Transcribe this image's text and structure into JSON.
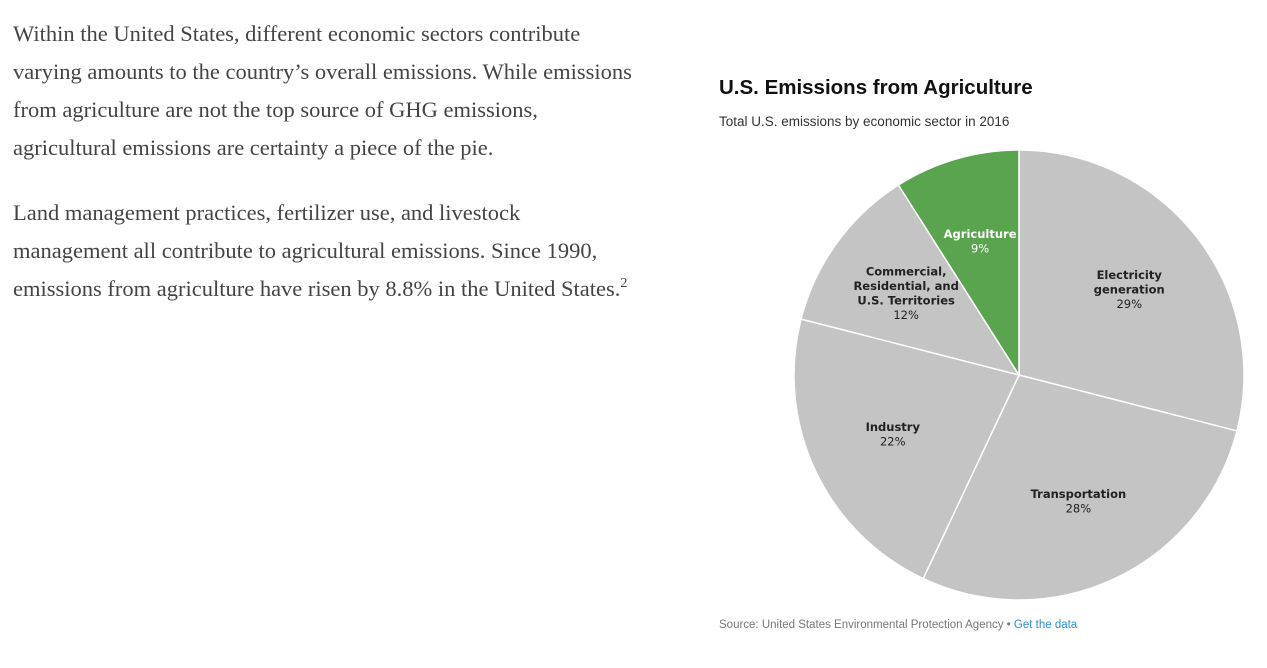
{
  "article": {
    "paragraph_1": "Within the United States, different economic sectors contribute varying amounts to the country’s overall emissions.  While emissions from agriculture are not the top source of GHG emissions, agricultural emissions are certainty a piece of the pie.",
    "paragraph_2": "Land management practices, fertilizer use, and livestock management all contribute to agricultural emissions.  Since 1990, emissions from agriculture have risen by 8.8% in the United States.",
    "footnote_marker": "2"
  },
  "chart_data": {
    "type": "pie",
    "title": "U.S. Emissions from Agriculture",
    "subtitle": "Total U.S. emissions by economic sector in 2016",
    "slices": [
      {
        "label": "Electricity generation",
        "label_lines": [
          "Electricity",
          "generation"
        ],
        "value": 29,
        "value_label": "29%",
        "color": "#c4c4c4",
        "text_color": "#222222"
      },
      {
        "label": "Transportation",
        "label_lines": [
          "Transportation"
        ],
        "value": 28,
        "value_label": "28%",
        "color": "#c4c4c4",
        "text_color": "#222222"
      },
      {
        "label": "Industry",
        "label_lines": [
          "Industry"
        ],
        "value": 22,
        "value_label": "22%",
        "color": "#c4c4c4",
        "text_color": "#222222"
      },
      {
        "label": "Commercial, Residential, and U.S. Territories",
        "label_lines": [
          "Commercial,",
          "Residential, and",
          "U.S. Territories"
        ],
        "value": 12,
        "value_label": "12%",
        "color": "#c4c4c4",
        "text_color": "#222222"
      },
      {
        "label": "Agriculture",
        "label_lines": [
          "Agriculture"
        ],
        "value": 9,
        "value_label": "9%",
        "color": "#5ba44f",
        "text_color": "#ffffff"
      }
    ],
    "start_angle": "12 o'clock",
    "direction": "clockwise",
    "source": "Source: United States Environmental Protection Agency",
    "separator": "•",
    "source_link": "Get the data"
  }
}
